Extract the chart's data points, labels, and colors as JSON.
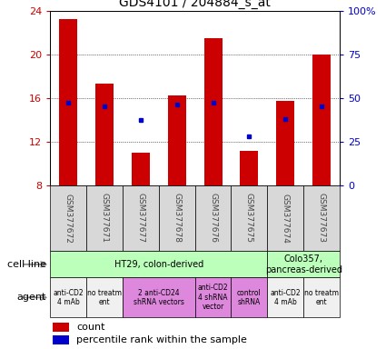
{
  "title": "GDS4101 / 204884_s_at",
  "samples": [
    "GSM377672",
    "GSM377671",
    "GSM377677",
    "GSM377678",
    "GSM377676",
    "GSM377675",
    "GSM377674",
    "GSM377673"
  ],
  "counts": [
    23.2,
    17.3,
    11.0,
    16.2,
    21.5,
    11.1,
    15.7,
    20.0
  ],
  "percentiles": [
    47,
    45,
    37,
    46,
    47,
    28,
    38,
    45
  ],
  "ylim_left": [
    8,
    24
  ],
  "ylim_right": [
    0,
    100
  ],
  "yticks_left": [
    8,
    12,
    16,
    20,
    24
  ],
  "yticks_right": [
    0,
    25,
    50,
    75,
    100
  ],
  "ytick_labels_right": [
    "0",
    "25",
    "50",
    "75",
    "100%"
  ],
  "bar_color": "#cc0000",
  "dot_color": "#0000cc",
  "bar_bottom": 8,
  "cell_line_groups": [
    {
      "label": "HT29, colon-derived",
      "start": 0,
      "end": 6,
      "color": "#bbffbb"
    },
    {
      "label": "Colo357,\npancreas-derived",
      "start": 6,
      "end": 8,
      "color": "#bbffbb"
    }
  ],
  "agent_groups": [
    {
      "label": "anti-CD2\n4 mAb",
      "start": 0,
      "end": 1,
      "color": "#f0f0f0"
    },
    {
      "label": "no treatm\nent",
      "start": 1,
      "end": 2,
      "color": "#f0f0f0"
    },
    {
      "label": "2 anti-CD24\nshRNA vectors",
      "start": 2,
      "end": 4,
      "color": "#dd88dd"
    },
    {
      "label": "anti-CD2\n4 shRNA\nvector",
      "start": 4,
      "end": 5,
      "color": "#dd88dd"
    },
    {
      "label": "control\nshRNA",
      "start": 5,
      "end": 6,
      "color": "#dd88dd"
    },
    {
      "label": "anti-CD2\n4 mAb",
      "start": 6,
      "end": 7,
      "color": "#f0f0f0"
    },
    {
      "label": "no treatm\nent",
      "start": 7,
      "end": 8,
      "color": "#f0f0f0"
    }
  ],
  "label_color_left": "#cc0000",
  "label_color_right": "#0000cc"
}
